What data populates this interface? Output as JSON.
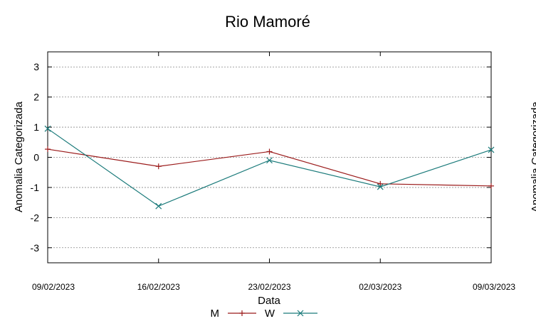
{
  "chart_data": {
    "type": "line",
    "title": "Rio Mamoré",
    "xlabel": "Data",
    "ylabel": "Anomalia Categorizada",
    "secondary_ylabel_partial": "Anomalia Categorizada",
    "x": [
      "09/02/2023",
      "16/02/2023",
      "23/02/2023",
      "02/03/2023",
      "09/03/2023"
    ],
    "ylim": [
      -3.5,
      3.5
    ],
    "yticks": [
      "3",
      "2",
      "1",
      "0",
      "-1",
      "-2",
      "-3"
    ],
    "ytick_values": [
      3,
      2,
      1,
      0,
      -1,
      -2,
      -3
    ],
    "grid": true,
    "legend": "bottom",
    "series": [
      {
        "name": "M",
        "color": "#9b1b1b",
        "marker": "plus",
        "values": [
          0.27,
          -0.3,
          0.19,
          -0.88,
          -0.95
        ]
      },
      {
        "name": "W",
        "color": "#1a7a7a",
        "marker": "x",
        "values": [
          0.95,
          -1.62,
          -0.1,
          -0.98,
          0.25
        ]
      }
    ]
  }
}
